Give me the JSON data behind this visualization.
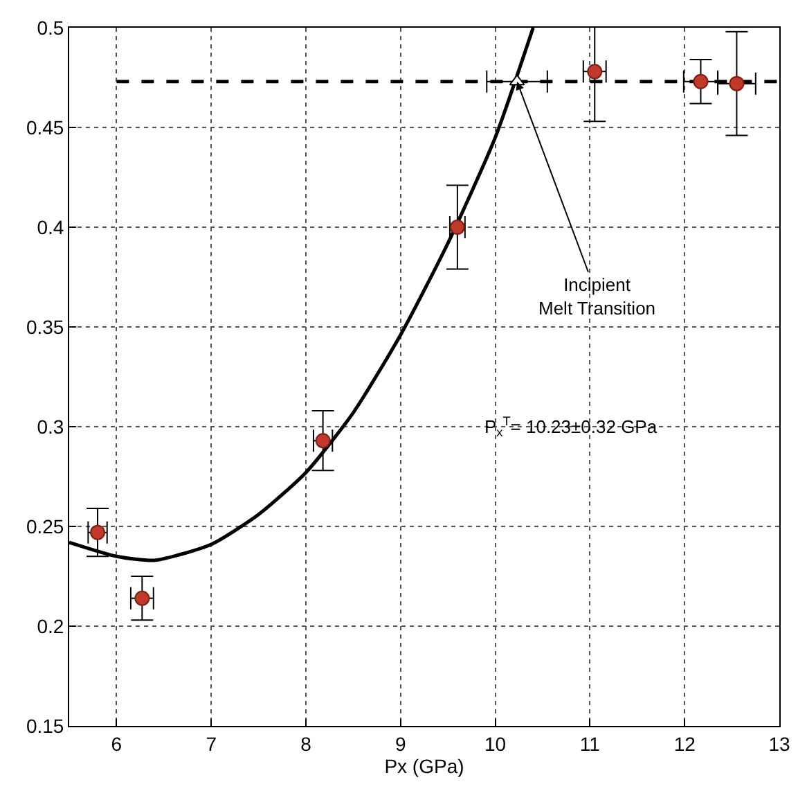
{
  "chart_data": {
    "type": "scatter",
    "xlabel": "Px (GPa)",
    "xlim": [
      5.5,
      13
    ],
    "xticks": [
      6,
      7,
      8,
      9,
      10,
      11,
      12,
      13
    ],
    "ylim": [
      0.15,
      0.5
    ],
    "yticks": [
      0.15,
      0.2,
      0.25,
      0.3,
      0.35,
      0.4,
      0.45,
      0.5
    ],
    "grid": true,
    "series": [
      {
        "type": "line",
        "color": "#000000",
        "line_style": "dashed",
        "marker": "none",
        "x": [
          6,
          13
        ],
        "values": [
          0.473,
          0.473
        ]
      },
      {
        "type": "line",
        "color": "#000000",
        "line_style": "solid",
        "marker": "none",
        "x": [
          5.5,
          6,
          6.4,
          7,
          7.5,
          8,
          8.5,
          9,
          9.5,
          10,
          10.4
        ],
        "values": [
          0.242,
          0.235,
          0.233,
          0.241,
          0.256,
          0.277,
          0.307,
          0.346,
          0.392,
          0.445,
          0.5
        ]
      },
      {
        "color": "#c0392b",
        "marker": "circle",
        "x": [
          5.8,
          6.27,
          8.18,
          9.6,
          11.05,
          12.17,
          12.55
        ],
        "values": [
          0.247,
          0.214,
          0.293,
          0.4,
          0.478,
          0.473,
          0.472
        ],
        "errors": [
          0.012,
          0.011,
          0.015,
          0.021,
          0.025,
          0.011,
          0.026
        ],
        "xerrors": [
          0.1,
          0.12,
          0.1,
          0.08,
          0.12,
          0.18,
          0.2
        ]
      },
      {
        "color": "#ffffff",
        "marker": "triangle",
        "x": [
          10.23
        ],
        "values": [
          0.473
        ],
        "xerrors": [
          0.32
        ]
      }
    ],
    "annotations": [
      {
        "text": "Incipient\nMelt Transition",
        "x": 10.23,
        "y": 0.473
      },
      "P$_{x}$$^{T}$= 10.23±0.32 GPa"
    ]
  }
}
